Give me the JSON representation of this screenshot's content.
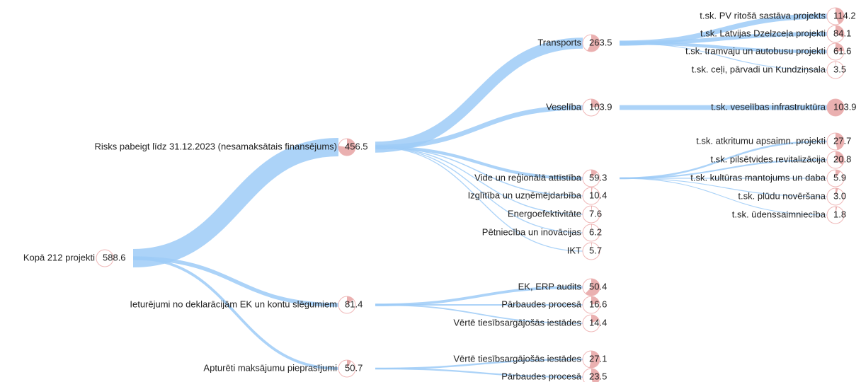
{
  "nodes": [
    {
      "label": "Kopā 212 projekti",
      "value": "588.6",
      "parent": null
    },
    {
      "label": "Risks pabeigt līdz 31.12.2023 (nesamaksātais finansējums)",
      "value": "456.5",
      "parent": 0
    },
    {
      "label": "Ieturējumi no deklarācijām EK un kontu slēgumiem",
      "value": "81.4",
      "parent": 0
    },
    {
      "label": "Apturēti maksājumu pieprasījumi",
      "value": "50.7",
      "parent": 0
    },
    {
      "label": "Transports",
      "value": "263.5",
      "parent": 1
    },
    {
      "label": "Veselība",
      "value": "103.9",
      "parent": 1
    },
    {
      "label": "Vide un reģionālā attīstība",
      "value": "59.3",
      "parent": 1
    },
    {
      "label": "Izglītība un uzņēmējdarbība",
      "value": "10.4",
      "parent": 1
    },
    {
      "label": "Energoefektivitāte",
      "value": "7.6",
      "parent": 1
    },
    {
      "label": "Pētniecība un inovācijas",
      "value": "6.2",
      "parent": 1
    },
    {
      "label": "IKT",
      "value": "5.7",
      "parent": 1
    },
    {
      "label": "EK, ERP audits",
      "value": "50.4",
      "parent": 2
    },
    {
      "label": "Pārbaudes procesā",
      "value": "16.6",
      "parent": 2
    },
    {
      "label": "Vērtē tiesībsargājošās iestādes",
      "value": "14.4",
      "parent": 2
    },
    {
      "label": "Vērtē tiesībsargājošās iestādes",
      "value": "27.1",
      "parent": 3
    },
    {
      "label": "Pārbaudes procesā",
      "value": "23.5",
      "parent": 3
    },
    {
      "label": "t.sk. PV ritošā sastāva projekts",
      "value": "114.2",
      "parent": 4
    },
    {
      "label": "t.sk. Latvijas Dzelzceļa projekti",
      "value": "84.1",
      "parent": 4
    },
    {
      "label": "t.sk. tramvaju un autobusu projekti",
      "value": "61.6",
      "parent": 4
    },
    {
      "label": "t.sk. ceļi, pārvadi un Kundziņsala",
      "value": "3.5",
      "parent": 4
    },
    {
      "label": "t.sk. veselības infrastruktūra",
      "value": "103.9",
      "parent": 5
    },
    {
      "label": "t.sk. atkritumu apsaimn. projekti",
      "value": "27.7",
      "parent": 6
    },
    {
      "label": "t.sk. pilsētvides revitalizācija",
      "value": "20.8",
      "parent": 6
    },
    {
      "label": "t.sk. kultūras mantojums un daba",
      "value": "5.9",
      "parent": 6
    },
    {
      "label": "t.sk. plūdu novēršana",
      "value": "3.0",
      "parent": 6
    },
    {
      "label": "t.sk. ūdenssaimniecība",
      "value": "1.8",
      "parent": 6
    }
  ]
}
